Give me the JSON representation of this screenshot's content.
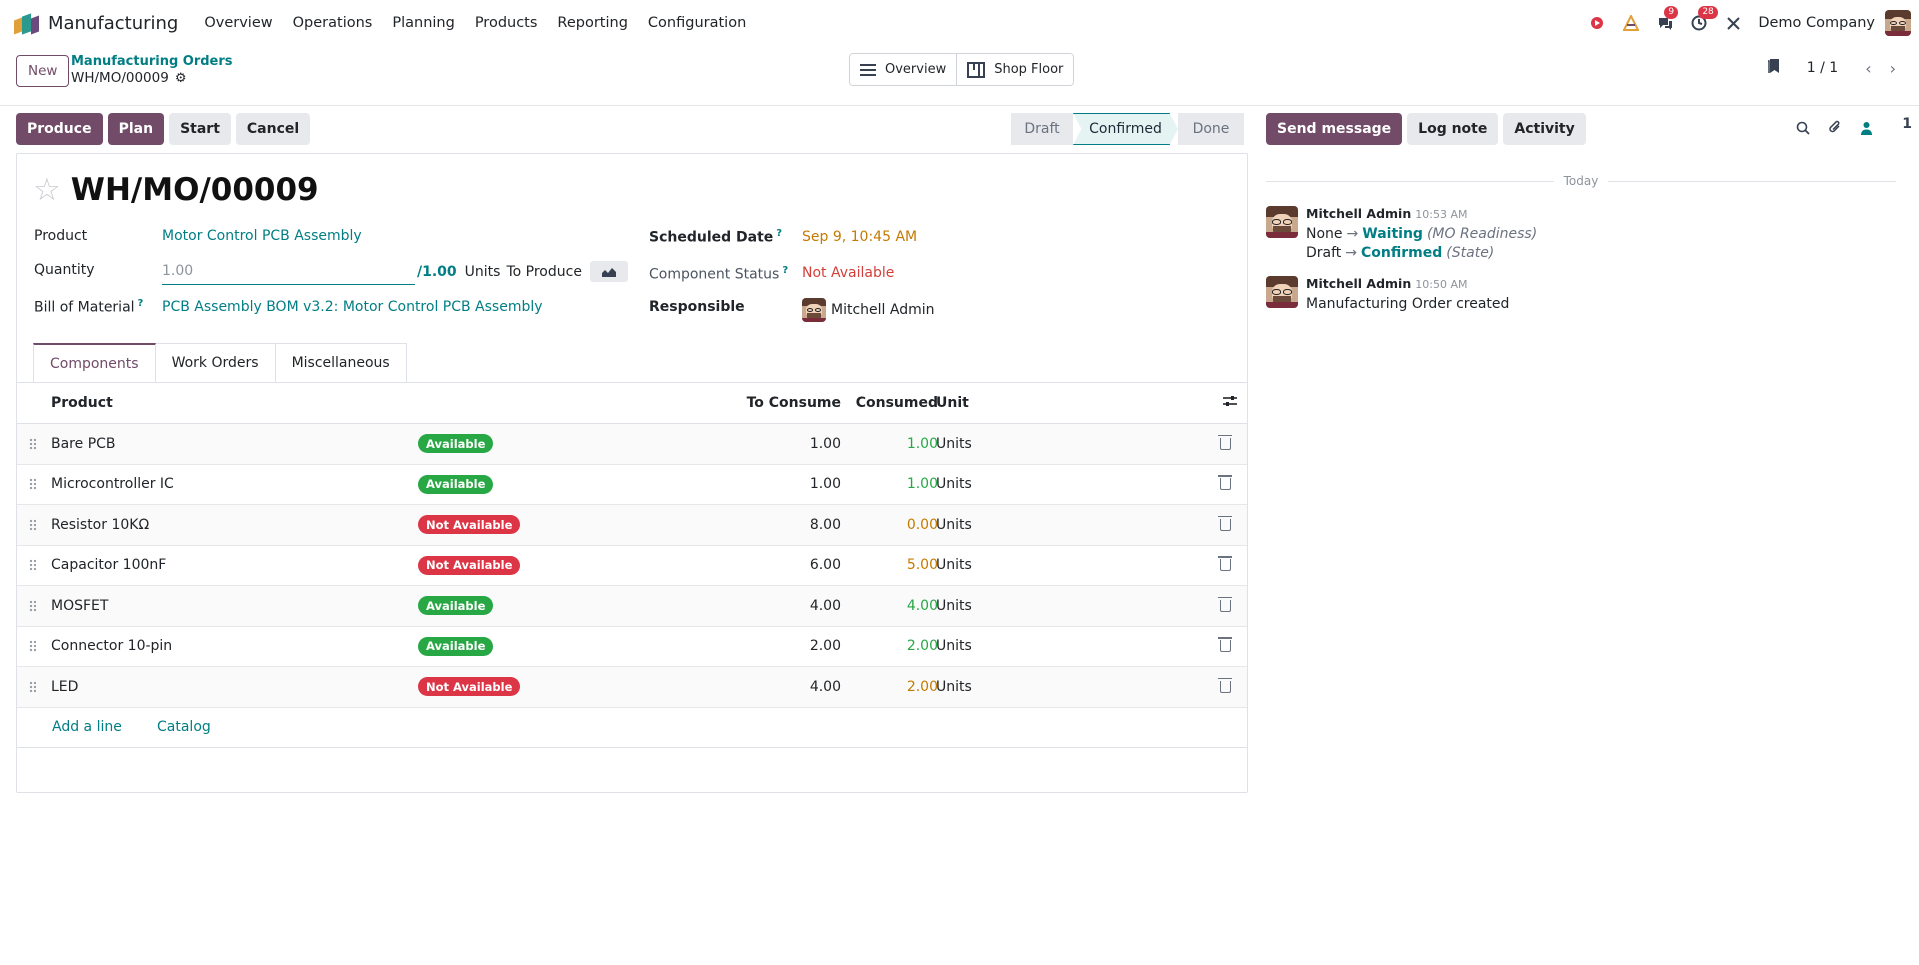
{
  "navbar": {
    "app_name": "Manufacturing",
    "menu": [
      "Overview",
      "Operations",
      "Planning",
      "Products",
      "Reporting",
      "Configuration"
    ],
    "messages_count": "9",
    "activities_count": "28",
    "company": "Demo Company"
  },
  "control_panel": {
    "new_label": "New",
    "breadcrumb_parent": "Manufacturing Orders",
    "breadcrumb_current": "WH/MO/00009",
    "switcher": {
      "overview": "Overview",
      "shop_floor": "Shop Floor"
    },
    "pager": "1 / 1"
  },
  "actions": {
    "produce": "Produce",
    "plan": "Plan",
    "start": "Start",
    "cancel": "Cancel"
  },
  "stages": {
    "draft": "Draft",
    "confirmed": "Confirmed",
    "done": "Done",
    "current": "Confirmed"
  },
  "form": {
    "title": "WH/MO/00009",
    "product_label": "Product",
    "product_value": "Motor Control PCB Assembly",
    "quantity_label": "Quantity",
    "quantity_placeholder": "1.00",
    "quantity_total": "1.00",
    "quantity_unit": "Units",
    "to_produce": "To Produce",
    "bom_label": "Bill of Material",
    "bom_value": "PCB Assembly BOM v3.2: Motor Control PCB Assembly",
    "scheduled_label": "Scheduled Date",
    "scheduled_value": "Sep 9, 10:45 AM",
    "component_status_label": "Component Status",
    "component_status_value": "Not Available",
    "responsible_label": "Responsible",
    "responsible_value": "Mitchell Admin",
    "help_mark": "?"
  },
  "tabs": {
    "components": "Components",
    "work_orders": "Work Orders",
    "misc": "Miscellaneous"
  },
  "table": {
    "headers": {
      "product": "Product",
      "to_consume": "To Consume",
      "consumed": "Consumed",
      "unit": "Unit"
    },
    "rows": [
      {
        "product": "Bare PCB",
        "status": "Available",
        "to_consume": "1.00",
        "consumed": "1.00",
        "unit": "Units"
      },
      {
        "product": "Microcontroller IC",
        "status": "Available",
        "to_consume": "1.00",
        "consumed": "1.00",
        "unit": "Units"
      },
      {
        "product": "Resistor 10KΩ",
        "status": "Not Available",
        "to_consume": "8.00",
        "consumed": "0.00",
        "unit": "Units"
      },
      {
        "product": "Capacitor 100nF",
        "status": "Not Available",
        "to_consume": "6.00",
        "consumed": "5.00",
        "unit": "Units"
      },
      {
        "product": "MOSFET",
        "status": "Available",
        "to_consume": "4.00",
        "consumed": "4.00",
        "unit": "Units"
      },
      {
        "product": "Connector 10-pin",
        "status": "Available",
        "to_consume": "2.00",
        "consumed": "2.00",
        "unit": "Units"
      },
      {
        "product": "LED",
        "status": "Not Available",
        "to_consume": "4.00",
        "consumed": "2.00",
        "unit": "Units"
      }
    ],
    "add_line": "Add a line",
    "catalog": "Catalog"
  },
  "chatter": {
    "send_message": "Send message",
    "log_note": "Log note",
    "activity": "Activity",
    "followers_count": "1",
    "today": "Today",
    "messages": [
      {
        "author": "Mitchell Admin",
        "time": "10:53 AM",
        "line1_old": "None",
        "line1_new": "Waiting",
        "line1_field": "(MO Readiness)",
        "line2_old": "Draft",
        "line2_new": "Confirmed",
        "line2_field": "(State)"
      },
      {
        "author": "Mitchell Admin",
        "time": "10:50 AM",
        "body": "Manufacturing Order created"
      }
    ]
  },
  "colors": {
    "brand": "#714b67",
    "link": "#017e84",
    "available": "#28a745",
    "not_available": "#dc3545"
  }
}
